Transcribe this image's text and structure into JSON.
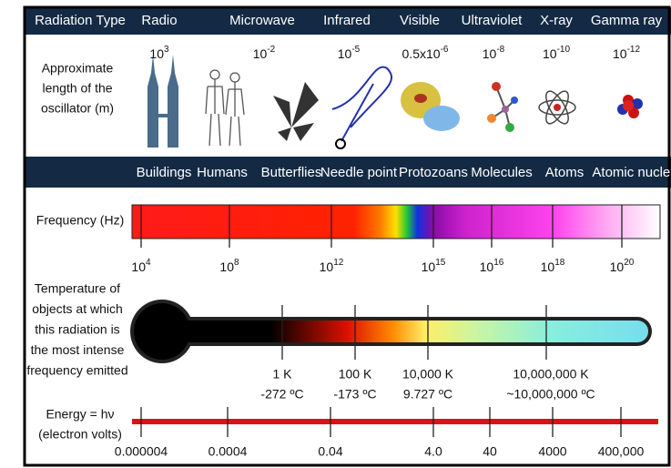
{
  "header": {
    "title": "Radiation Type",
    "bands": [
      "Radio",
      "Microwave",
      "Infrared",
      "Visible",
      "Ultraviolet",
      "X-ray",
      "Gamma ray"
    ]
  },
  "length": {
    "label": [
      "Approximate",
      "length of the",
      "oscillator (m)"
    ],
    "values": [
      {
        "base": "10",
        "exp": "3"
      },
      {
        "base": "10",
        "exp": "-2"
      },
      {
        "base": "10",
        "exp": "-5"
      },
      {
        "base": "0.5x10",
        "exp": "-6"
      },
      {
        "base": "10",
        "exp": "-8"
      },
      {
        "base": "10",
        "exp": "-10"
      },
      {
        "base": "10",
        "exp": "-12"
      }
    ]
  },
  "objects": [
    "Buildings",
    "Humans",
    "Butterflies",
    "Needle point",
    "Protozoans",
    "Molecules",
    "Atoms",
    "Atomic nuclei"
  ],
  "frequency": {
    "label": "Frequency (Hz)",
    "values": [
      {
        "base": "10",
        "exp": "4"
      },
      {
        "base": "10",
        "exp": "8"
      },
      {
        "base": "10",
        "exp": "12"
      },
      {
        "base": "10",
        "exp": "15"
      },
      {
        "base": "10",
        "exp": "16"
      },
      {
        "base": "10",
        "exp": "18"
      },
      {
        "base": "10",
        "exp": "20"
      }
    ]
  },
  "temperature": {
    "label": [
      "Temperature of",
      "objects at which",
      "this radiation is",
      "the most intense",
      "frequency emitted"
    ],
    "points": [
      {
        "kelvin": "1 K",
        "celsius": "-272 ºC"
      },
      {
        "kelvin": "100 K",
        "celsius": "-173 ºC"
      },
      {
        "kelvin": "10,000 K",
        "celsius": "9.727 ºC"
      },
      {
        "kelvin": "10,000,000 K",
        "celsius": "~10,000,000 ºC"
      }
    ]
  },
  "energy": {
    "label": [
      "Energy = hν",
      "(electron volts)"
    ],
    "values": [
      "0.000004",
      "0.0004",
      "0.04",
      "4.0",
      "40",
      "4000",
      "400,000"
    ]
  }
}
